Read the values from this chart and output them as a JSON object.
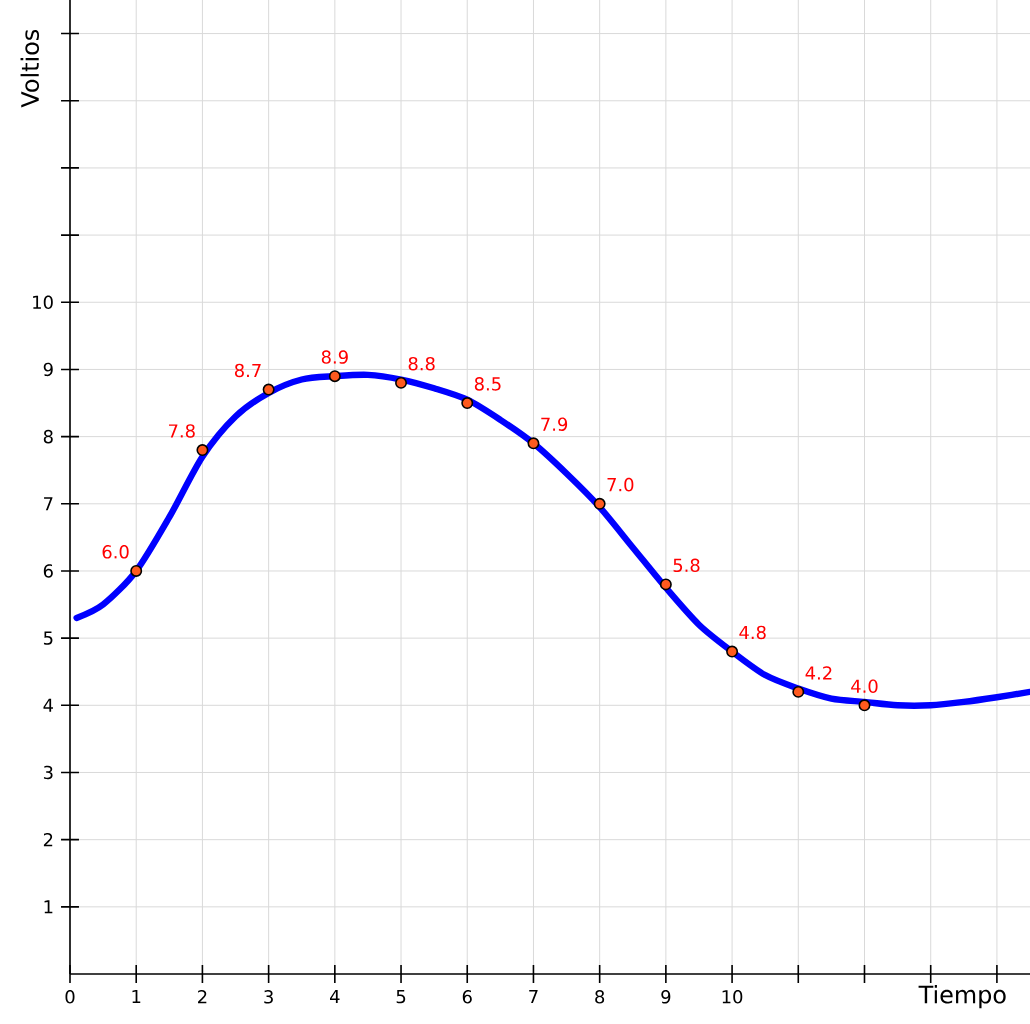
{
  "chart_data": {
    "type": "line",
    "xlabel": "Tiempo",
    "ylabel": "Voltios",
    "xlim": [
      0,
      14.5
    ],
    "ylim": [
      0,
      14.5
    ],
    "xticks": [
      0,
      1,
      2,
      3,
      4,
      5,
      6,
      7,
      8,
      9,
      10,
      {
        "value": 11,
        "label": null
      },
      {
        "value": 12,
        "label": null
      },
      {
        "value": 13,
        "label": null
      },
      {
        "value": 14,
        "label": null
      }
    ],
    "yticks": [
      1,
      2,
      3,
      4,
      5,
      6,
      7,
      8,
      9,
      10,
      {
        "value": 11,
        "label": null
      },
      {
        "value": 12,
        "label": null
      },
      {
        "value": 13,
        "label": null
      },
      {
        "value": 14,
        "label": null
      }
    ],
    "grid": true,
    "series": [
      {
        "color": "#0000ff",
        "marker": "none",
        "line_style": "solid",
        "x": [
          0.1,
          0.5,
          1,
          1.5,
          2,
          2.5,
          3,
          3.5,
          4,
          4.5,
          5,
          5.5,
          6,
          6.5,
          7,
          7.5,
          8,
          8.5,
          9,
          9.5,
          10,
          10.5,
          11,
          11.5,
          12,
          12.5,
          13,
          13.5,
          14,
          14.5
        ],
        "values": [
          5.3,
          5.5,
          6.0,
          6.8,
          7.7,
          8.3,
          8.65,
          8.85,
          8.9,
          8.92,
          8.85,
          8.72,
          8.55,
          8.25,
          7.9,
          7.45,
          6.95,
          6.35,
          5.75,
          5.2,
          4.8,
          4.45,
          4.25,
          4.1,
          4.05,
          4.0,
          4.0,
          4.05,
          4.12,
          4.2
        ]
      },
      {
        "type": "scatter",
        "color": "#ff5a1e",
        "marker": "circle",
        "x": [
          1,
          2,
          3,
          4,
          5,
          6,
          7,
          8,
          9,
          10,
          11,
          12
        ],
        "values": [
          6.0,
          7.8,
          8.7,
          8.9,
          8.8,
          8.5,
          7.9,
          7.0,
          5.8,
          4.8,
          4.2,
          4.0
        ],
        "value_labels": [
          "6.0",
          "7.8",
          "8.7",
          "8.9",
          "8.8",
          "8.5",
          "7.9",
          "7.0",
          "5.8",
          "4.8",
          "4.2",
          "4.0"
        ]
      }
    ]
  }
}
